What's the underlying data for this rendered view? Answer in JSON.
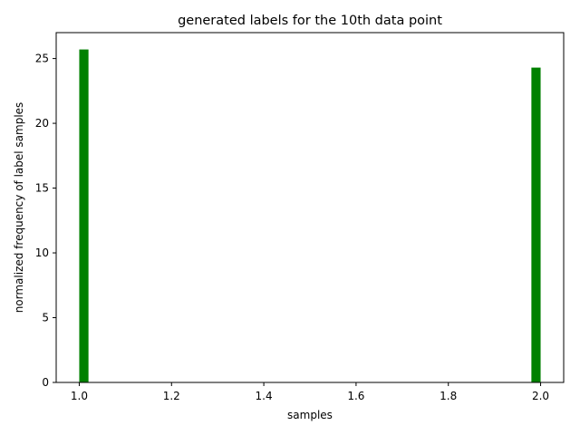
{
  "chart_data": {
    "type": "bar",
    "title": "generated labels for the 10th data point",
    "xlabel": "samples",
    "ylabel": "normalized frequency of label samples",
    "xlim": [
      0.95,
      2.05
    ],
    "ylim": [
      0,
      27
    ],
    "x_ticks": [
      "1.0",
      "1.2",
      "1.4",
      "1.6",
      "1.8",
      "2.0"
    ],
    "y_ticks": [
      "0",
      "5",
      "10",
      "15",
      "20",
      "25"
    ],
    "bar_color": "#008000",
    "bars": [
      {
        "x_start": 1.0,
        "x_end": 1.02,
        "value": 25.7
      },
      {
        "x_start": 1.98,
        "x_end": 2.0,
        "value": 24.3
      }
    ],
    "grid": false,
    "legend": "none"
  }
}
